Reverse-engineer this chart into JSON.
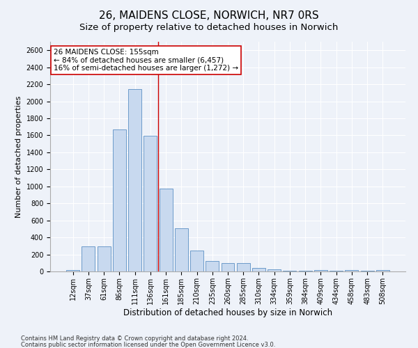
{
  "title": "26, MAIDENS CLOSE, NORWICH, NR7 0RS",
  "subtitle": "Size of property relative to detached houses in Norwich",
  "xlabel": "Distribution of detached houses by size in Norwich",
  "ylabel": "Number of detached properties",
  "bar_color": "#c8d9ef",
  "bar_edge_color": "#5b8fc4",
  "categories": [
    "12sqm",
    "37sqm",
    "61sqm",
    "86sqm",
    "111sqm",
    "136sqm",
    "161sqm",
    "185sqm",
    "210sqm",
    "235sqm",
    "260sqm",
    "285sqm",
    "310sqm",
    "334sqm",
    "359sqm",
    "384sqm",
    "409sqm",
    "434sqm",
    "458sqm",
    "483sqm",
    "508sqm"
  ],
  "values": [
    18,
    295,
    295,
    1670,
    2140,
    1595,
    970,
    510,
    245,
    120,
    100,
    95,
    45,
    28,
    10,
    5,
    18,
    5,
    18,
    5,
    18
  ],
  "vline_x": 5.5,
  "vline_color": "#cc0000",
  "annotation_text": "26 MAIDENS CLOSE: 155sqm\n← 84% of detached houses are smaller (6,457)\n16% of semi-detached houses are larger (1,272) →",
  "annotation_box_color": "white",
  "annotation_border_color": "#cc0000",
  "ylim": [
    0,
    2700
  ],
  "yticks": [
    0,
    200,
    400,
    600,
    800,
    1000,
    1200,
    1400,
    1600,
    1800,
    2000,
    2200,
    2400,
    2600
  ],
  "footnote1": "Contains HM Land Registry data © Crown copyright and database right 2024.",
  "footnote2": "Contains public sector information licensed under the Open Government Licence v3.0.",
  "bg_color": "#eef2f9",
  "grid_color": "white",
  "title_fontsize": 11,
  "subtitle_fontsize": 9.5,
  "xlabel_fontsize": 8.5,
  "ylabel_fontsize": 8,
  "tick_fontsize": 7,
  "annotation_fontsize": 7.5,
  "footnote_fontsize": 6
}
